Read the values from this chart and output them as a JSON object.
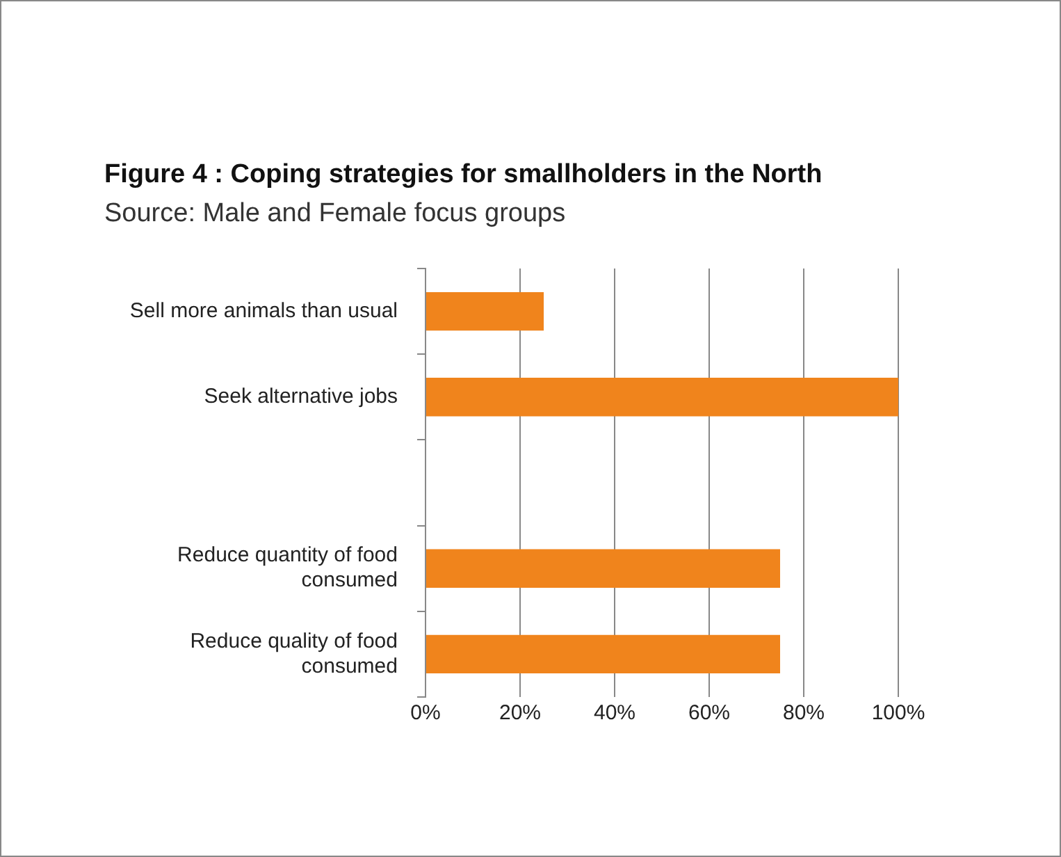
{
  "chart_data": {
    "type": "bar",
    "orientation": "horizontal",
    "title": "Figure 4 : Coping strategies for smallholders  in the North",
    "subtitle": "Source: Male and Female focus groups",
    "categories": [
      "Sell more animals than usual",
      "Seek alternative jobs",
      null,
      "Reduce quantity of food consumed",
      "Reduce quality of food consumed"
    ],
    "values": [
      25,
      100,
      null,
      75,
      75
    ],
    "color": "#f0841c",
    "xlim": [
      0,
      100
    ],
    "xticks": [
      {
        "value": 0,
        "label": "0%"
      },
      {
        "value": 20,
        "label": "20%"
      },
      {
        "value": 40,
        "label": "40%"
      },
      {
        "value": 60,
        "label": "60%"
      },
      {
        "value": 80,
        "label": "80%"
      },
      {
        "value": 100,
        "label": "100%"
      }
    ],
    "grid": "x",
    "legend": false
  }
}
